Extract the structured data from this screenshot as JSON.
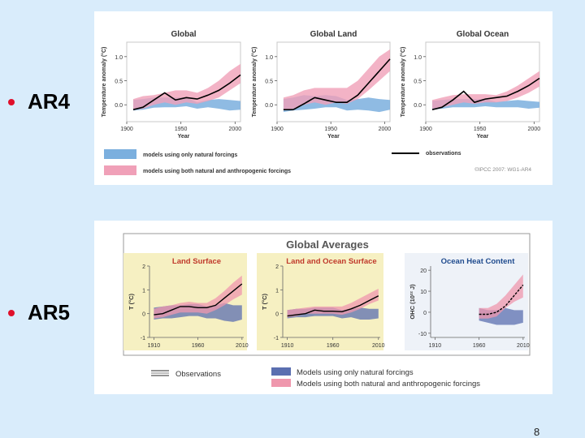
{
  "slide": {
    "bullets": [
      "AR4",
      "AR5"
    ],
    "page_number": "8"
  },
  "chart_data": [
    {
      "type": "line",
      "id": "ar4",
      "panels": [
        {
          "title": "Global",
          "ylabel": "Temperature anomaly (°C)",
          "xlabel": "Year"
        },
        {
          "title": "Global Land",
          "ylabel": "Temperature anomaly (°C)",
          "xlabel": "Year"
        },
        {
          "title": "Global Ocean",
          "ylabel": "Temperature anomaly (°C)",
          "xlabel": "Year"
        }
      ],
      "x_ticks": [
        "1900",
        "1950",
        "2000"
      ],
      "y_ticks": [
        "0.0",
        "0.5",
        "1.0"
      ],
      "x": [
        1906,
        1915,
        1925,
        1935,
        1945,
        1955,
        1965,
        1975,
        1985,
        1995,
        2005
      ],
      "xlim": [
        1900,
        2005
      ],
      "ylim": [
        -0.35,
        1.3
      ],
      "series": [
        {
          "panel": "Global",
          "observations": [
            -0.1,
            -0.05,
            0.1,
            0.25,
            0.1,
            0.15,
            0.12,
            0.2,
            0.3,
            0.45,
            0.62
          ],
          "natural_band": {
            "low": [
              -0.12,
              -0.1,
              -0.06,
              -0.05,
              -0.05,
              -0.03,
              -0.08,
              -0.05,
              -0.08,
              -0.12,
              -0.1
            ],
            "high": [
              0.1,
              0.12,
              0.15,
              0.15,
              0.15,
              0.15,
              0.05,
              0.1,
              0.12,
              0.1,
              0.08
            ]
          },
          "combined_band": {
            "low": [
              -0.1,
              -0.08,
              0.0,
              0.05,
              0.0,
              0.05,
              0.02,
              0.08,
              0.15,
              0.3,
              0.45
            ],
            "high": [
              0.12,
              0.18,
              0.2,
              0.25,
              0.3,
              0.3,
              0.25,
              0.35,
              0.5,
              0.7,
              0.85
            ]
          }
        },
        {
          "panel": "Global Land",
          "observations": [
            -0.1,
            -0.1,
            0.02,
            0.15,
            0.1,
            0.05,
            0.05,
            0.2,
            0.45,
            0.7,
            0.95
          ],
          "natural_band": {
            "low": [
              -0.15,
              -0.12,
              -0.1,
              -0.08,
              -0.05,
              -0.05,
              -0.12,
              -0.1,
              -0.12,
              -0.15,
              -0.1
            ],
            "high": [
              0.12,
              0.15,
              0.2,
              0.18,
              0.2,
              0.18,
              0.1,
              0.12,
              0.15,
              0.12,
              0.1
            ]
          },
          "combined_band": {
            "low": [
              -0.12,
              -0.08,
              0.0,
              0.05,
              0.0,
              0.05,
              0.02,
              0.12,
              0.3,
              0.5,
              0.7
            ],
            "high": [
              0.15,
              0.2,
              0.3,
              0.35,
              0.35,
              0.35,
              0.35,
              0.5,
              0.75,
              1.0,
              1.15
            ]
          }
        },
        {
          "panel": "Global Ocean",
          "observations": [
            -0.1,
            -0.05,
            0.1,
            0.28,
            0.05,
            0.12,
            0.15,
            0.18,
            0.28,
            0.4,
            0.55
          ],
          "natural_band": {
            "low": [
              -0.1,
              -0.08,
              -0.05,
              -0.05,
              -0.05,
              -0.03,
              -0.05,
              -0.05,
              -0.05,
              -0.08,
              -0.06
            ],
            "high": [
              0.08,
              0.1,
              0.12,
              0.12,
              0.12,
              0.12,
              0.06,
              0.08,
              0.1,
              0.08,
              0.06
            ]
          },
          "combined_band": {
            "low": [
              -0.08,
              -0.05,
              0.0,
              0.05,
              0.02,
              0.05,
              0.05,
              0.08,
              0.15,
              0.25,
              0.38
            ],
            "high": [
              0.1,
              0.15,
              0.2,
              0.22,
              0.22,
              0.22,
              0.2,
              0.28,
              0.4,
              0.55,
              0.7
            ]
          }
        }
      ],
      "legend": {
        "natural": "models using only natural forcings",
        "combined": "models using both natural and anthropogenic forcings",
        "observations": "observations"
      },
      "credit": "©IPCC 2007: WG1-AR4",
      "colors": {
        "natural": "#7bafde",
        "combined": "#f0a0b8",
        "observations": "#000000"
      }
    },
    {
      "type": "line",
      "id": "ar5",
      "title": "Global Averages",
      "panels": [
        {
          "title": "Land Surface",
          "ylabel": "T (°C)",
          "y_ticks": [
            "-1",
            "0",
            "1",
            "2"
          ],
          "x_ticks": [
            "1910",
            "1960",
            "2010"
          ]
        },
        {
          "title": "Land and Ocean Surface",
          "ylabel": "T (°C)",
          "y_ticks": [
            "-1",
            "0",
            "1",
            "2"
          ],
          "x_ticks": [
            "1910",
            "1960",
            "2010"
          ]
        },
        {
          "title": "Ocean Heat Content",
          "ylabel": "OHC (10²² J)",
          "y_ticks": [
            "-10",
            "0",
            "10",
            "20"
          ],
          "x_ticks": [
            "1910",
            "1960",
            "2010"
          ]
        }
      ],
      "series": [
        {
          "panel": "Land Surface",
          "x": [
            1910,
            1920,
            1930,
            1940,
            1950,
            1960,
            1970,
            1980,
            1990,
            2000,
            2010
          ],
          "ylim": [
            -1,
            2
          ],
          "observations": [
            -0.05,
            0.0,
            0.15,
            0.3,
            0.3,
            0.25,
            0.25,
            0.35,
            0.65,
            0.95,
            1.25
          ],
          "natural_band": {
            "low": [
              -0.25,
              -0.2,
              -0.2,
              -0.15,
              -0.1,
              -0.1,
              -0.2,
              -0.2,
              -0.3,
              -0.35,
              -0.25
            ],
            "high": [
              0.25,
              0.3,
              0.35,
              0.35,
              0.4,
              0.4,
              0.3,
              0.35,
              0.45,
              0.35,
              0.35
            ]
          },
          "combined_band": {
            "low": [
              -0.2,
              -0.15,
              -0.05,
              0.05,
              0.05,
              0.05,
              0.0,
              0.15,
              0.35,
              0.6,
              0.8
            ],
            "high": [
              0.2,
              0.3,
              0.35,
              0.45,
              0.5,
              0.45,
              0.45,
              0.65,
              0.95,
              1.3,
              1.6
            ]
          }
        },
        {
          "panel": "Land and Ocean Surface",
          "x": [
            1910,
            1920,
            1930,
            1940,
            1950,
            1960,
            1970,
            1980,
            1990,
            2000,
            2010
          ],
          "ylim": [
            -1,
            2
          ],
          "observations": [
            -0.1,
            -0.05,
            0.0,
            0.15,
            0.1,
            0.1,
            0.08,
            0.2,
            0.35,
            0.55,
            0.75
          ],
          "natural_band": {
            "low": [
              -0.2,
              -0.15,
              -0.15,
              -0.1,
              -0.1,
              -0.1,
              -0.2,
              -0.15,
              -0.25,
              -0.25,
              -0.2
            ],
            "high": [
              0.15,
              0.2,
              0.2,
              0.25,
              0.25,
              0.25,
              0.15,
              0.2,
              0.25,
              0.2,
              0.2
            ]
          },
          "combined_band": {
            "low": [
              -0.15,
              -0.1,
              0.0,
              0.0,
              0.0,
              0.0,
              -0.05,
              0.05,
              0.2,
              0.4,
              0.55
            ],
            "high": [
              0.15,
              0.2,
              0.25,
              0.3,
              0.3,
              0.3,
              0.3,
              0.45,
              0.65,
              0.85,
              1.05
            ]
          }
        },
        {
          "panel": "Ocean Heat Content",
          "x": [
            1960,
            1970,
            1980,
            1990,
            2000,
            2010
          ],
          "ylim": [
            -12,
            22
          ],
          "observations": [
            -1,
            -1,
            0,
            3,
            8,
            13
          ],
          "natural_band": {
            "low": [
              -4,
              -5,
              -6,
              -6,
              -6,
              -5
            ],
            "high": [
              2,
              1,
              1,
              2,
              1,
              1
            ]
          },
          "combined_band": {
            "low": [
              -3,
              -3,
              -2,
              2,
              5,
              7
            ],
            "high": [
              2,
              2,
              4,
              8,
              13,
              18
            ]
          }
        }
      ],
      "legend": {
        "observations": "Observations",
        "natural": "Models using only natural forcings",
        "combined": "Models using both natural and anthropogenic forcings"
      },
      "colors": {
        "natural": "#5b6fb0",
        "combined": "#ef97ad",
        "observations": "#000000",
        "panel_bg": "#f6f0c2",
        "ocean_bg": "#eef2f8",
        "title_color": "#c0392b",
        "ocean_title_color": "#1f4b8e"
      }
    }
  ]
}
